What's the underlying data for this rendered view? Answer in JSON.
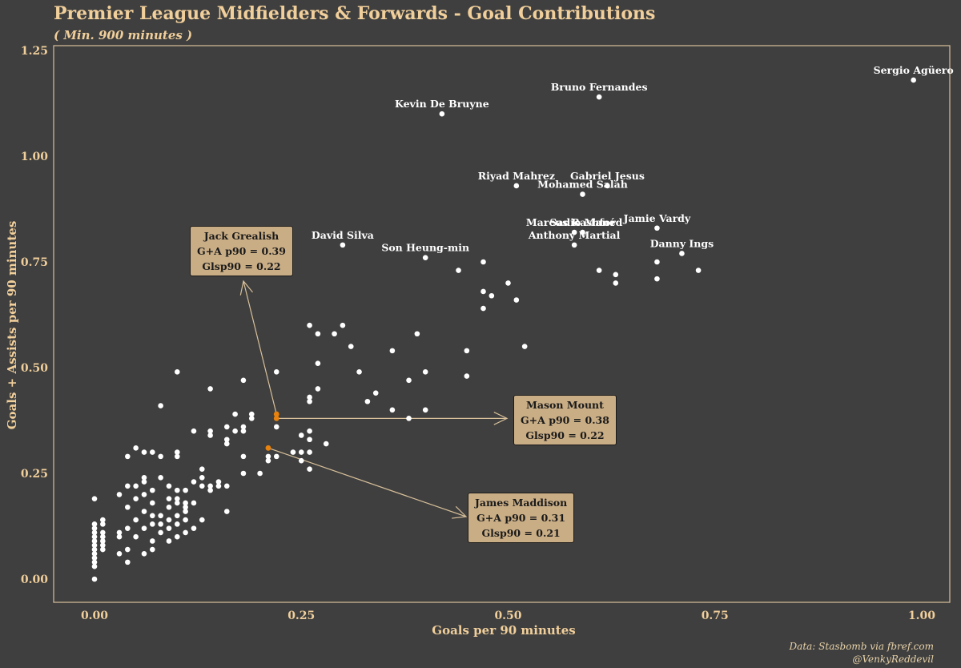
{
  "title": "Premier League Midfielders & Forwards - Goal Contributions",
  "subtitle": "( Min. 900 minutes )",
  "credit": [
    "Data: Stasbomb via fbref.com",
    "@VenkyReddevil"
  ],
  "colors": {
    "background": "#3f3f3f",
    "text": "#f1cf9b",
    "point": "#ffffff",
    "highlight": "#e8820c",
    "annotation_box": "#c9ad85",
    "arrow": "#d8c09a"
  },
  "chart_data": {
    "type": "scatter",
    "xlabel": "Goals per 90 minutes",
    "ylabel": "Goals + Assists per 90 minutes",
    "xlim": [
      -0.05,
      1.03
    ],
    "ylim": [
      -0.06,
      1.26
    ],
    "xticks": [
      0.0,
      0.25,
      0.5,
      0.75,
      1.0
    ],
    "yticks": [
      0.0,
      0.25,
      0.5,
      0.75,
      1.0,
      1.25
    ],
    "xtick_labels": [
      "0.00",
      "0.25",
      "0.50",
      "0.75",
      "1.00"
    ],
    "ytick_labels": [
      "0.00",
      "0.25",
      "0.50",
      "0.75",
      "1.00",
      "1.25"
    ],
    "grid": false,
    "labeled_points": [
      {
        "name": "Sergio Agüero",
        "x": 0.99,
        "y": 1.18
      },
      {
        "name": "Bruno Fernandes",
        "x": 0.61,
        "y": 1.14
      },
      {
        "name": "Kevin De Bruyne",
        "x": 0.42,
        "y": 1.1
      },
      {
        "name": "Riyad Mahrez",
        "x": 0.51,
        "y": 0.93
      },
      {
        "name": "Gabriel Jesus",
        "x": 0.62,
        "y": 0.93
      },
      {
        "name": "Mohamed Salah",
        "x": 0.59,
        "y": 0.91
      },
      {
        "name": "Jamie Vardy",
        "x": 0.68,
        "y": 0.83
      },
      {
        "name": "Marcus Rashford",
        "x": 0.58,
        "y": 0.82
      },
      {
        "name": "Sadio Mané",
        "x": 0.59,
        "y": 0.82
      },
      {
        "name": "Anthony Martial",
        "x": 0.58,
        "y": 0.79
      },
      {
        "name": "Danny Ings",
        "x": 0.71,
        "y": 0.77
      },
      {
        "name": "David Silva",
        "x": 0.3,
        "y": 0.79
      },
      {
        "name": "Son Heung-min",
        "x": 0.4,
        "y": 0.76
      }
    ],
    "highlighted_points": [
      {
        "name": "Jack Grealish",
        "x": 0.22,
        "y": 0.39,
        "stat1": "G+A p90 = 0.39",
        "stat2": "Glsp90 = 0.22"
      },
      {
        "name": "Mason Mount",
        "x": 0.22,
        "y": 0.38,
        "stat1": "G+A p90 = 0.38",
        "stat2": "Glsp90 = 0.22"
      },
      {
        "name": "James Maddison",
        "x": 0.21,
        "y": 0.31,
        "stat1": "G+A p90 = 0.31",
        "stat2": "Glsp90 = 0.21"
      }
    ],
    "points": [
      [
        0,
        0.19
      ],
      [
        0,
        0.13
      ],
      [
        0,
        0.12
      ],
      [
        0,
        0.11
      ],
      [
        0,
        0.1
      ],
      [
        0,
        0.09
      ],
      [
        0,
        0.08
      ],
      [
        0,
        0.07
      ],
      [
        0,
        0.06
      ],
      [
        0,
        0.05
      ],
      [
        0,
        0.04
      ],
      [
        0,
        0.03
      ],
      [
        0,
        0
      ],
      [
        0.01,
        0.14
      ],
      [
        0.01,
        0.13
      ],
      [
        0.01,
        0.11
      ],
      [
        0.01,
        0.1
      ],
      [
        0.01,
        0.09
      ],
      [
        0.01,
        0.08
      ],
      [
        0.01,
        0.07
      ],
      [
        0.03,
        0.2
      ],
      [
        0.03,
        0.11
      ],
      [
        0.03,
        0.1
      ],
      [
        0.03,
        0.06
      ],
      [
        0.04,
        0.29
      ],
      [
        0.04,
        0.22
      ],
      [
        0.04,
        0.17
      ],
      [
        0.04,
        0.12
      ],
      [
        0.04,
        0.07
      ],
      [
        0.04,
        0.04
      ],
      [
        0.05,
        0.31
      ],
      [
        0.05,
        0.22
      ],
      [
        0.05,
        0.19
      ],
      [
        0.05,
        0.14
      ],
      [
        0.05,
        0.1
      ],
      [
        0.06,
        0.3
      ],
      [
        0.06,
        0.24
      ],
      [
        0.06,
        0.23
      ],
      [
        0.06,
        0.2
      ],
      [
        0.06,
        0.16
      ],
      [
        0.06,
        0.12
      ],
      [
        0.06,
        0.06
      ],
      [
        0.07,
        0.3
      ],
      [
        0.07,
        0.21
      ],
      [
        0.07,
        0.18
      ],
      [
        0.07,
        0.15
      ],
      [
        0.07,
        0.13
      ],
      [
        0.07,
        0.09
      ],
      [
        0.07,
        0.07
      ],
      [
        0.08,
        0.41
      ],
      [
        0.08,
        0.29
      ],
      [
        0.08,
        0.24
      ],
      [
        0.08,
        0.15
      ],
      [
        0.08,
        0.13
      ],
      [
        0.08,
        0.11
      ],
      [
        0.09,
        0.22
      ],
      [
        0.09,
        0.19
      ],
      [
        0.09,
        0.17
      ],
      [
        0.09,
        0.14
      ],
      [
        0.09,
        0.12
      ],
      [
        0.09,
        0.09
      ],
      [
        0.1,
        0.49
      ],
      [
        0.1,
        0.3
      ],
      [
        0.1,
        0.29
      ],
      [
        0.1,
        0.21
      ],
      [
        0.1,
        0.19
      ],
      [
        0.1,
        0.18
      ],
      [
        0.1,
        0.15
      ],
      [
        0.1,
        0.13
      ],
      [
        0.1,
        0.1
      ],
      [
        0.11,
        0.21
      ],
      [
        0.11,
        0.18
      ],
      [
        0.11,
        0.17
      ],
      [
        0.11,
        0.16
      ],
      [
        0.11,
        0.14
      ],
      [
        0.11,
        0.11
      ],
      [
        0.12,
        0.35
      ],
      [
        0.12,
        0.23
      ],
      [
        0.12,
        0.18
      ],
      [
        0.12,
        0.12
      ],
      [
        0.13,
        0.26
      ],
      [
        0.13,
        0.24
      ],
      [
        0.13,
        0.22
      ],
      [
        0.13,
        0.14
      ],
      [
        0.14,
        0.45
      ],
      [
        0.14,
        0.35
      ],
      [
        0.14,
        0.34
      ],
      [
        0.14,
        0.22
      ],
      [
        0.14,
        0.21
      ],
      [
        0.15,
        0.23
      ],
      [
        0.15,
        0.22
      ],
      [
        0.16,
        0.36
      ],
      [
        0.16,
        0.33
      ],
      [
        0.16,
        0.32
      ],
      [
        0.16,
        0.22
      ],
      [
        0.16,
        0.16
      ],
      [
        0.17,
        0.39
      ],
      [
        0.17,
        0.35
      ],
      [
        0.18,
        0.47
      ],
      [
        0.18,
        0.36
      ],
      [
        0.18,
        0.35
      ],
      [
        0.18,
        0.29
      ],
      [
        0.18,
        0.25
      ],
      [
        0.19,
        0.39
      ],
      [
        0.19,
        0.38
      ],
      [
        0.2,
        0.25
      ],
      [
        0.21,
        0.29
      ],
      [
        0.21,
        0.28
      ],
      [
        0.22,
        0.49
      ],
      [
        0.22,
        0.36
      ],
      [
        0.22,
        0.29
      ],
      [
        0.24,
        0.3
      ],
      [
        0.25,
        0.34
      ],
      [
        0.25,
        0.3
      ],
      [
        0.25,
        0.28
      ],
      [
        0.26,
        0.6
      ],
      [
        0.26,
        0.43
      ],
      [
        0.26,
        0.42
      ],
      [
        0.26,
        0.35
      ],
      [
        0.26,
        0.33
      ],
      [
        0.26,
        0.3
      ],
      [
        0.26,
        0.26
      ],
      [
        0.27,
        0.58
      ],
      [
        0.27,
        0.51
      ],
      [
        0.27,
        0.45
      ],
      [
        0.28,
        0.32
      ],
      [
        0.29,
        0.58
      ],
      [
        0.3,
        0.6
      ],
      [
        0.31,
        0.55
      ],
      [
        0.32,
        0.49
      ],
      [
        0.33,
        0.42
      ],
      [
        0.34,
        0.44
      ],
      [
        0.36,
        0.54
      ],
      [
        0.36,
        0.4
      ],
      [
        0.38,
        0.47
      ],
      [
        0.38,
        0.38
      ],
      [
        0.39,
        0.58
      ],
      [
        0.4,
        0.49
      ],
      [
        0.4,
        0.4
      ],
      [
        0.44,
        0.73
      ],
      [
        0.45,
        0.54
      ],
      [
        0.45,
        0.48
      ],
      [
        0.47,
        0.75
      ],
      [
        0.47,
        0.68
      ],
      [
        0.47,
        0.64
      ],
      [
        0.48,
        0.67
      ],
      [
        0.5,
        0.7
      ],
      [
        0.51,
        0.66
      ],
      [
        0.52,
        0.55
      ],
      [
        0.61,
        0.73
      ],
      [
        0.63,
        0.72
      ],
      [
        0.63,
        0.7
      ],
      [
        0.68,
        0.75
      ],
      [
        0.68,
        0.71
      ],
      [
        0.73,
        0.73
      ]
    ]
  }
}
